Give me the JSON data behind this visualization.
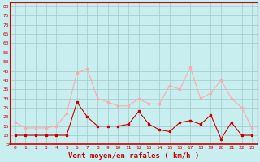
{
  "hours": [
    0,
    1,
    2,
    3,
    4,
    5,
    6,
    7,
    8,
    9,
    10,
    11,
    12,
    13,
    14,
    15,
    16,
    17,
    18,
    19,
    20,
    21,
    22,
    23
  ],
  "mean_wind": [
    10,
    10,
    10,
    10,
    10,
    10,
    28,
    20,
    15,
    15,
    15,
    16,
    23,
    16,
    13,
    12,
    17,
    18,
    16,
    21,
    8,
    17,
    10,
    10
  ],
  "gust_wind": [
    17,
    14,
    14,
    14,
    15,
    22,
    44,
    46,
    30,
    28,
    26,
    26,
    30,
    27,
    27,
    37,
    35,
    47,
    30,
    33,
    40,
    30,
    25,
    14
  ],
  "mean_color": "#cc0000",
  "gust_color": "#ffaaaa",
  "bg_color": "#c8eef0",
  "grid_color": "#a0c8cc",
  "xlabel": "Vent moyen/en rafales ( km/h )",
  "ytick_labels": [
    "5",
    "10",
    "15",
    "20",
    "25",
    "30",
    "35",
    "40",
    "45",
    "50",
    "55",
    "60",
    "65",
    "70",
    "75",
    "80"
  ],
  "ytick_values": [
    5,
    10,
    15,
    20,
    25,
    30,
    35,
    40,
    45,
    50,
    55,
    60,
    65,
    70,
    75,
    80
  ],
  "ylim": [
    5,
    82
  ],
  "xlim": [
    -0.5,
    23.5
  ],
  "xlabel_color": "#cc0000",
  "tick_color": "#cc0000",
  "axis_color": "#cc0000",
  "marker": "s",
  "markersize": 2.0,
  "linewidth": 0.8
}
